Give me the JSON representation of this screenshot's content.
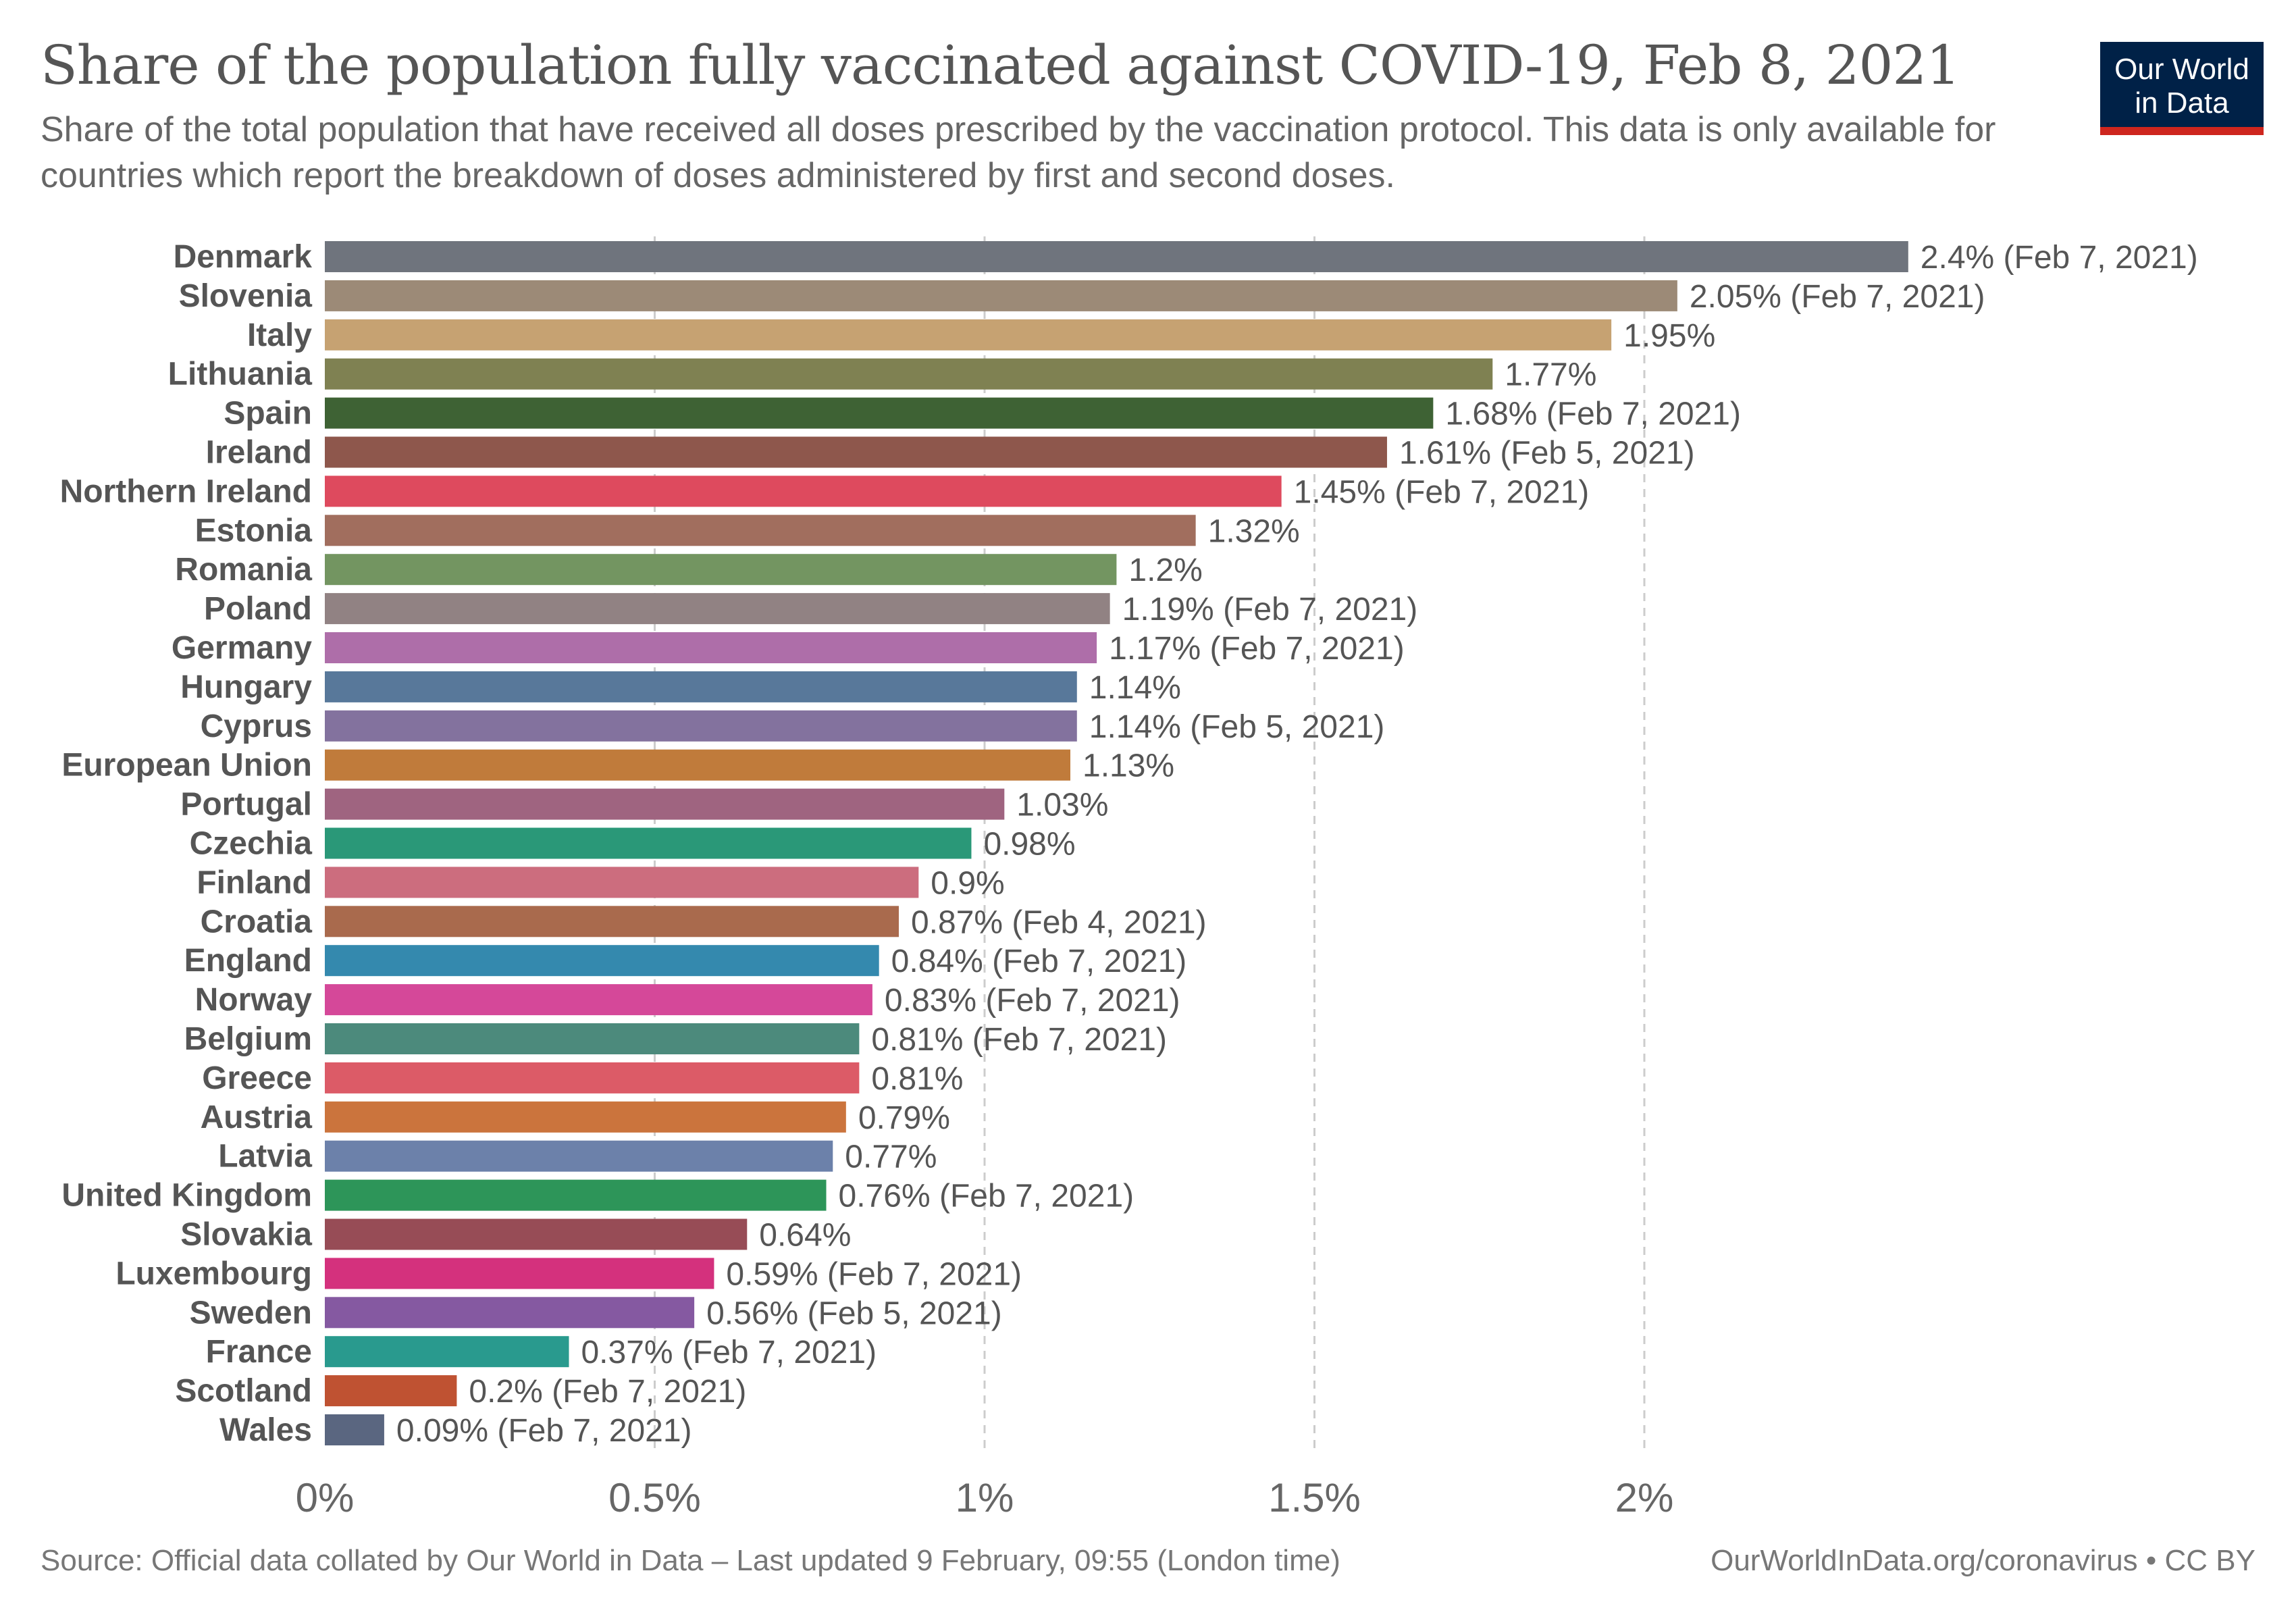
{
  "header": {
    "title": "Share of the population fully vaccinated against COVID-19, Feb 8, 2021",
    "subtitle": "Share of the total population that have received all doses prescribed by the vaccination protocol. This data is only available for countries which report the breakdown of doses administered by first and second doses."
  },
  "logo": {
    "line1": "Our World",
    "line2": "in Data",
    "bg_color": "#002147",
    "accent_color": "#ce261e"
  },
  "footer": {
    "source": "Source: Official data collated by Our World in Data – Last updated 9 February, 09:55 (London time)",
    "license": "OurWorldInData.org/coronavirus • CC BY"
  },
  "chart_data": {
    "type": "bar",
    "orientation": "horizontal",
    "unit": "%",
    "xlim": [
      0,
      2.4
    ],
    "x_ticks": [
      {
        "value": 0,
        "label": "0%"
      },
      {
        "value": 0.5,
        "label": "0.5%"
      },
      {
        "value": 1,
        "label": "1%"
      },
      {
        "value": 1.5,
        "label": "1.5%"
      },
      {
        "value": 2,
        "label": "2%"
      }
    ],
    "grid": "vertical-dashed",
    "categories": [
      "Denmark",
      "Slovenia",
      "Italy",
      "Lithuania",
      "Spain",
      "Ireland",
      "Northern Ireland",
      "Estonia",
      "Romania",
      "Poland",
      "Germany",
      "Hungary",
      "Cyprus",
      "European Union",
      "Portugal",
      "Czechia",
      "Finland",
      "Croatia",
      "England",
      "Norway",
      "Belgium",
      "Greece",
      "Austria",
      "Latvia",
      "United Kingdom",
      "Slovakia",
      "Luxembourg",
      "Sweden",
      "France",
      "Scotland",
      "Wales"
    ],
    "values": [
      2.4,
      2.05,
      1.95,
      1.77,
      1.68,
      1.61,
      1.45,
      1.32,
      1.2,
      1.19,
      1.17,
      1.14,
      1.14,
      1.13,
      1.03,
      0.98,
      0.9,
      0.87,
      0.84,
      0.83,
      0.81,
      0.81,
      0.79,
      0.77,
      0.76,
      0.64,
      0.59,
      0.56,
      0.37,
      0.2,
      0.09
    ],
    "value_labels": [
      "2.4% (Feb 7, 2021)",
      "2.05% (Feb 7, 2021)",
      "1.95%",
      "1.77%",
      "1.68% (Feb 7, 2021)",
      "1.61% (Feb 5, 2021)",
      "1.45% (Feb 7, 2021)",
      "1.32%",
      "1.2%",
      "1.19% (Feb 7, 2021)",
      "1.17% (Feb 7, 2021)",
      "1.14%",
      "1.14% (Feb 5, 2021)",
      "1.13%",
      "1.03%",
      "0.98%",
      "0.9%",
      "0.87% (Feb 4, 2021)",
      "0.84% (Feb 7, 2021)",
      "0.83% (Feb 7, 2021)",
      "0.81% (Feb 7, 2021)",
      "0.81%",
      "0.79%",
      "0.77%",
      "0.76% (Feb 7, 2021)",
      "0.64%",
      "0.59% (Feb 7, 2021)",
      "0.56% (Feb 5, 2021)",
      "0.37% (Feb 7, 2021)",
      "0.2% (Feb 7, 2021)",
      "0.09% (Feb 7, 2021)"
    ],
    "colors": [
      "#6f747d",
      "#9c8a77",
      "#c6a272",
      "#7f8152",
      "#3e6234",
      "#8e574c",
      "#de4a5e",
      "#a16e5e",
      "#739561",
      "#918283",
      "#ae6ea9",
      "#58789a",
      "#83729e",
      "#c07b3b",
      "#9f6480",
      "#2a9878",
      "#cc6d7e",
      "#a96a4d",
      "#3489ae",
      "#d54899",
      "#4c8a7c",
      "#dc5b67",
      "#cb743d",
      "#6c81aa",
      "#2d9559",
      "#974c56",
      "#d4317d",
      "#8559a1",
      "#299a8e",
      "#bf5232",
      "#5a6680"
    ]
  }
}
